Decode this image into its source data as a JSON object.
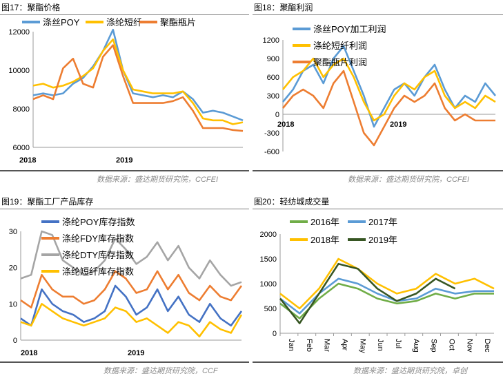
{
  "figures": [
    {
      "id": "fig17",
      "title": "图17：聚酯价格",
      "source": "数据来源：盛达期货研究院，CCFEI"
    },
    {
      "id": "fig18",
      "title": "图18：聚酯利润",
      "source": "数据来源：盛达期货研究院，CCFEI"
    },
    {
      "id": "fig19",
      "title": "图19：聚酯工厂产品库存",
      "source": "数据来源：盛达期货研究院，CCF"
    },
    {
      "id": "fig20",
      "title": "图20：轻纺城成交量",
      "source": "数据来源：盛达期货研究院，卓创"
    }
  ],
  "chart_data": [
    {
      "type": "line",
      "title": "",
      "xlabel": "",
      "ylabel": "",
      "x_ticks": [
        "2018",
        "2019"
      ],
      "y_ticks": [
        6000,
        8000,
        10000,
        12000
      ],
      "ylim": [
        6000,
        12000
      ],
      "legend_position": "top",
      "x": [
        "2018-01",
        "2018-02",
        "2018-03",
        "2018-04",
        "2018-05",
        "2018-06",
        "2018-07",
        "2018-08",
        "2018-09",
        "2018-10",
        "2018-11",
        "2018-12",
        "2019-01",
        "2019-02",
        "2019-03",
        "2019-04",
        "2019-05",
        "2019-06",
        "2019-07",
        "2019-08",
        "2019-09",
        "2019-10"
      ],
      "series": [
        {
          "name": "涤丝POY",
          "color": "#5b9bd5",
          "values": [
            8700,
            8800,
            8700,
            8800,
            9300,
            9600,
            10200,
            11000,
            12100,
            10000,
            8800,
            8700,
            8600,
            8700,
            8600,
            8900,
            8500,
            7800,
            7900,
            7800,
            7600,
            7400
          ]
        },
        {
          "name": "涤纶短纤",
          "color": "#ffc000",
          "values": [
            9200,
            9300,
            9100,
            9200,
            9400,
            9700,
            10100,
            11000,
            11600,
            10000,
            9000,
            8900,
            8800,
            8800,
            8800,
            8900,
            8300,
            7500,
            7400,
            7400,
            7200,
            7300
          ]
        },
        {
          "name": "聚酯瓶片",
          "color": "#ed7d31",
          "values": [
            8500,
            8700,
            8500,
            10100,
            10600,
            9300,
            9100,
            10700,
            11300,
            9700,
            8300,
            8300,
            8300,
            8300,
            8400,
            8600,
            7900,
            7000,
            7000,
            7000,
            6900,
            6850
          ]
        }
      ]
    },
    {
      "type": "line",
      "title": "",
      "xlabel": "",
      "ylabel": "",
      "x_ticks": [
        "2018",
        "2019"
      ],
      "y_ticks": [
        -600,
        -300,
        0,
        300,
        600,
        900,
        1200
      ],
      "ylim": [
        -600,
        1200
      ],
      "legend_position": "top-right",
      "x": [
        "2018-01",
        "2018-02",
        "2018-03",
        "2018-04",
        "2018-05",
        "2018-06",
        "2018-07",
        "2018-08",
        "2018-09",
        "2018-10",
        "2018-11",
        "2018-12",
        "2019-01",
        "2019-02",
        "2019-03",
        "2019-04",
        "2019-05",
        "2019-06",
        "2019-07",
        "2019-08",
        "2019-09",
        "2019-10"
      ],
      "series": [
        {
          "name": "涤丝POY加工利润",
          "color": "#5b9bd5",
          "values": [
            200,
            400,
            700,
            800,
            500,
            900,
            1100,
            700,
            300,
            -200,
            100,
            400,
            500,
            300,
            600,
            800,
            400,
            100,
            300,
            200,
            500,
            300
          ]
        },
        {
          "name": "涤纶短纤利润",
          "color": "#ffc000",
          "values": [
            400,
            600,
            700,
            900,
            600,
            800,
            900,
            600,
            200,
            -100,
            0,
            300,
            500,
            400,
            600,
            700,
            300,
            100,
            200,
            100,
            300,
            200
          ]
        },
        {
          "name": "聚酯瓶片利润",
          "color": "#ed7d31",
          "values": [
            100,
            300,
            400,
            300,
            100,
            500,
            700,
            200,
            -300,
            -500,
            -200,
            100,
            300,
            200,
            300,
            500,
            100,
            -100,
            0,
            -100,
            -100,
            -100
          ]
        }
      ]
    },
    {
      "type": "line",
      "title": "",
      "xlabel": "",
      "ylabel": "",
      "x_ticks": [
        "2018",
        "2019"
      ],
      "y_ticks": [
        0,
        10,
        20,
        30
      ],
      "ylim": [
        0,
        30
      ],
      "legend_position": "top",
      "x": [
        "2018-01",
        "2018-02",
        "2018-03",
        "2018-04",
        "2018-05",
        "2018-06",
        "2018-07",
        "2018-08",
        "2018-09",
        "2018-10",
        "2018-11",
        "2018-12",
        "2019-01",
        "2019-02",
        "2019-03",
        "2019-04",
        "2019-05",
        "2019-06",
        "2019-07",
        "2019-08",
        "2019-09",
        "2019-10"
      ],
      "series": [
        {
          "name": "涤纶POY库存指数",
          "color": "#4472c4",
          "values": [
            6,
            4,
            14,
            10,
            8,
            7,
            5,
            6,
            8,
            15,
            12,
            7,
            9,
            14,
            8,
            12,
            7,
            5,
            10,
            6,
            4,
            8
          ]
        },
        {
          "name": "涤纶FDY库存指数",
          "color": "#ed7d31",
          "values": [
            11,
            9,
            18,
            14,
            12,
            12,
            10,
            11,
            14,
            19,
            17,
            13,
            14,
            19,
            14,
            18,
            13,
            11,
            15,
            12,
            11,
            15
          ]
        },
        {
          "name": "涤纶DTY库存指数",
          "color": "#a5a5a5",
          "values": [
            17,
            18,
            30,
            29,
            22,
            20,
            18,
            19,
            22,
            28,
            25,
            21,
            23,
            27,
            22,
            26,
            20,
            17,
            22,
            18,
            15,
            16
          ]
        },
        {
          "name": "涤纶短纤库存指数",
          "color": "#ffc000",
          "values": [
            5,
            4,
            10,
            8,
            6,
            5,
            4,
            5,
            6,
            9,
            8,
            5,
            6,
            4,
            2,
            5,
            4,
            1,
            5,
            3,
            2,
            7
          ]
        }
      ]
    },
    {
      "type": "line",
      "title": "",
      "xlabel": "",
      "ylabel": "",
      "x_ticks": [
        "Jan",
        "Feb",
        "Mar",
        "Apr",
        "May",
        "Jun",
        "Jul",
        "Aug",
        "Sep",
        "Oct",
        "Nov",
        "Dec"
      ],
      "y_ticks": [
        0,
        500,
        1000,
        1500,
        2000
      ],
      "ylim": [
        0,
        2000
      ],
      "legend_position": "top",
      "x": [
        "Jan",
        "Feb",
        "Mar",
        "Apr",
        "May",
        "Jun",
        "Jul",
        "Aug",
        "Sep",
        "Oct",
        "Nov",
        "Dec"
      ],
      "series": [
        {
          "name": "2016年",
          "color": "#70ad47",
          "values": [
            600,
            300,
            700,
            1000,
            900,
            700,
            600,
            650,
            800,
            700,
            800,
            800
          ]
        },
        {
          "name": "2017年",
          "color": "#5b9bd5",
          "values": [
            700,
            400,
            800,
            1100,
            1000,
            800,
            650,
            700,
            900,
            800,
            850,
            850
          ]
        },
        {
          "name": "2018年",
          "color": "#ffc000",
          "values": [
            800,
            500,
            900,
            1500,
            1300,
            1000,
            800,
            900,
            1200,
            1000,
            1100,
            900
          ]
        },
        {
          "name": "2019年",
          "color": "#375623",
          "values": [
            700,
            200,
            800,
            1400,
            1300,
            900,
            650,
            800,
            1100,
            900,
            null,
            null
          ]
        }
      ]
    }
  ]
}
